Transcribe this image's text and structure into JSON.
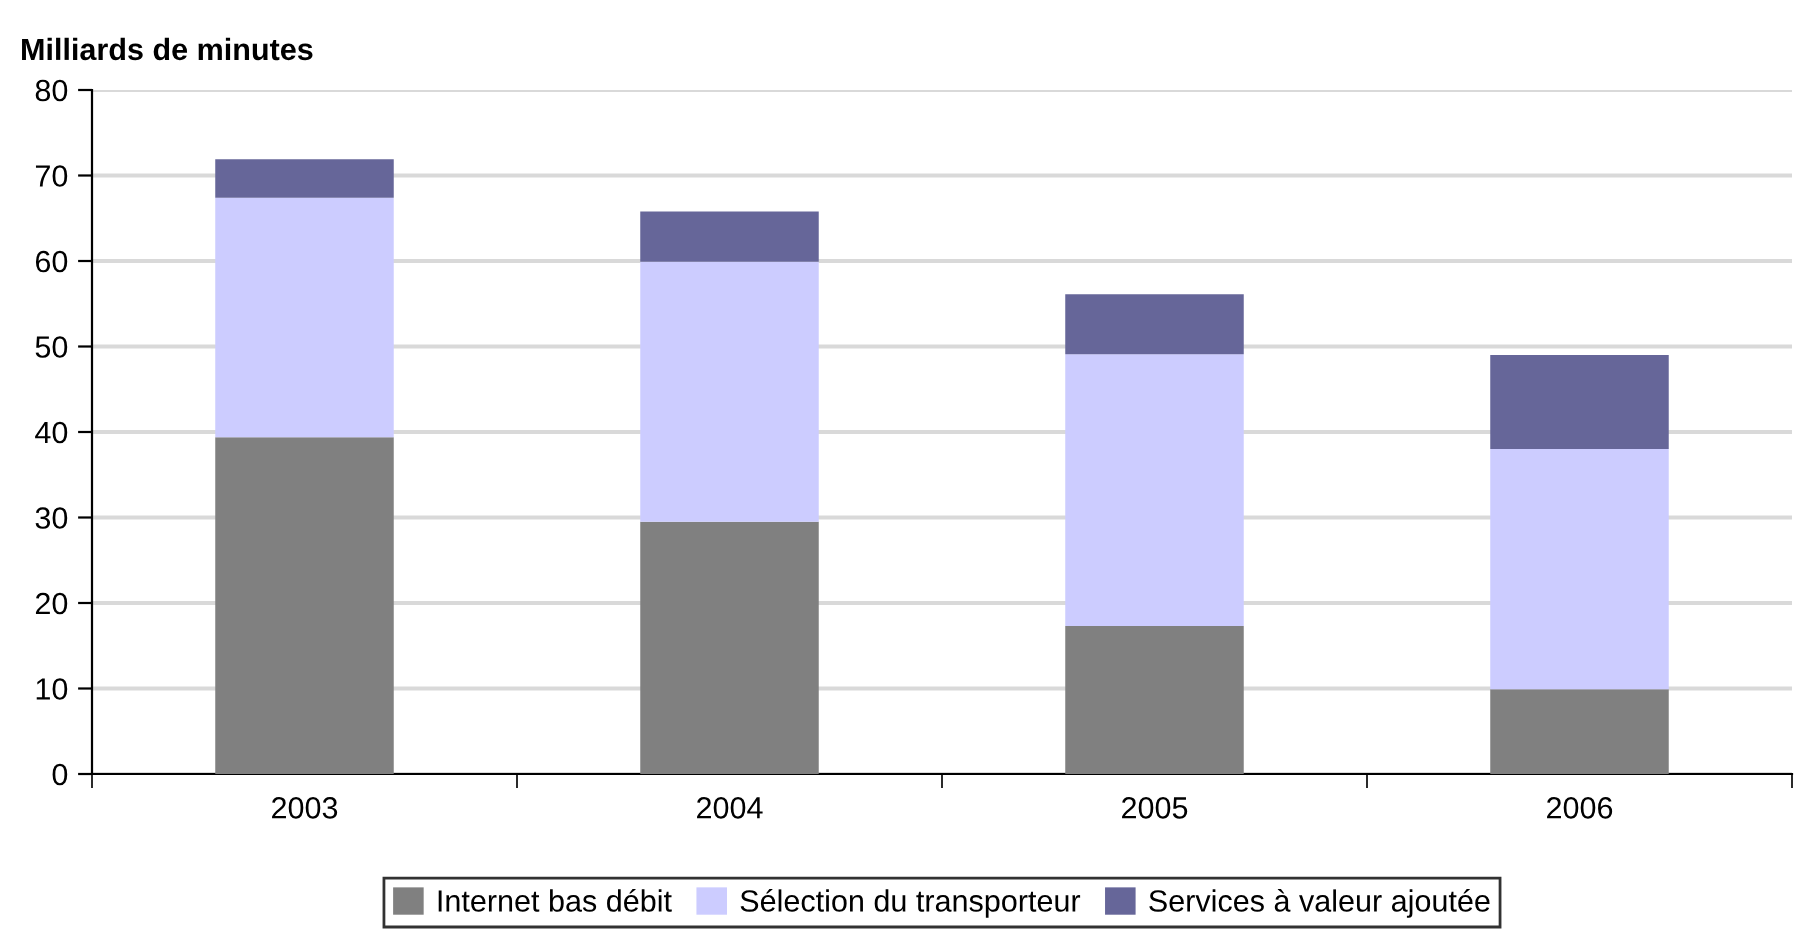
{
  "chart_data": {
    "type": "bar",
    "stacked": true,
    "ylabel": "Milliards de minutes",
    "categories": [
      "2003",
      "2004",
      "2005",
      "2006"
    ],
    "series": [
      {
        "name": "Internet bas débit",
        "color": "#808080",
        "values": [
          39.4,
          29.5,
          17.3,
          9.9
        ]
      },
      {
        "name": "Sélection du transporteur",
        "color": "#ccccff",
        "values": [
          28.0,
          30.4,
          31.8,
          28.1
        ]
      },
      {
        "name": "Services à valeur ajoutée",
        "color": "#666699",
        "values": [
          4.5,
          5.9,
          7.0,
          11.0
        ]
      }
    ],
    "ylim": [
      0,
      80
    ],
    "yticks": [
      0,
      10,
      20,
      30,
      40,
      50,
      60,
      70,
      80
    ],
    "grid": "y",
    "legend": "bottom"
  }
}
